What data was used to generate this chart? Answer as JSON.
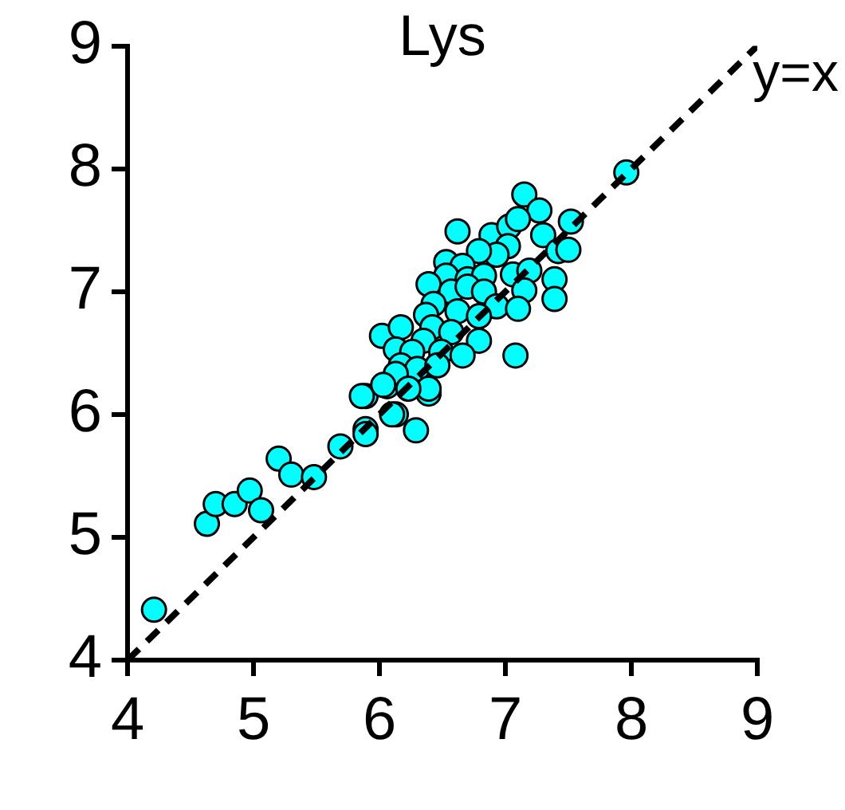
{
  "chart_data": {
    "type": "scatter",
    "title": "Lys",
    "annotations": [
      "y=x"
    ],
    "xlim": [
      4,
      9
    ],
    "ylim": [
      4,
      9
    ],
    "xticks": [
      4,
      5,
      6,
      7,
      8,
      9
    ],
    "yticks": [
      4,
      5,
      6,
      7,
      8,
      9
    ],
    "marker": "circle",
    "series": [
      {
        "type": "line",
        "color": "#000000",
        "line_style": "dashed",
        "marker": "none",
        "x": [
          4,
          9
        ],
        "values": [
          4,
          9
        ]
      },
      {
        "color": "#00ffff",
        "x": [
          4.21,
          4.63,
          4.7,
          4.85,
          4.97,
          5.06,
          5.2,
          5.3,
          5.48,
          5.69,
          5.89,
          5.89,
          6.06,
          6.13,
          6.29,
          5.89,
          6.39,
          6.02,
          7.96,
          7.15,
          7.27,
          6.62,
          6.89,
          7.03,
          7.1,
          7.52,
          7.3,
          7.42,
          7.5,
          7.02,
          6.93,
          6.79,
          6.53,
          6.66,
          6.53,
          6.7,
          6.83,
          7.06,
          7.19,
          7.39,
          7.39,
          6.39,
          6.57,
          6.7,
          6.83,
          7.15,
          6.93,
          7.1,
          6.43,
          6.62,
          6.79,
          6.37,
          6.42,
          6.17,
          6.35,
          6.57,
          6.79,
          6.13,
          6.26,
          6.49,
          6.66,
          7.08,
          6.17,
          6.3,
          6.46,
          6.13,
          6.39,
          6.03,
          5.86,
          6.23,
          6.1
        ],
        "values": [
          4.41,
          5.11,
          5.27,
          5.27,
          5.38,
          5.22,
          5.64,
          5.51,
          5.49,
          5.74,
          5.88,
          6.15,
          6.23,
          6.0,
          5.87,
          5.84,
          6.17,
          6.64,
          7.97,
          7.79,
          7.66,
          7.49,
          7.46,
          7.53,
          7.59,
          7.57,
          7.46,
          7.33,
          7.34,
          7.37,
          7.3,
          7.33,
          7.24,
          7.21,
          7.13,
          7.1,
          7.13,
          7.14,
          7.17,
          7.1,
          6.94,
          7.06,
          7.0,
          7.04,
          7.0,
          7.01,
          6.88,
          6.86,
          6.9,
          6.84,
          6.8,
          6.81,
          6.71,
          6.71,
          6.6,
          6.67,
          6.6,
          6.53,
          6.51,
          6.51,
          6.48,
          6.48,
          6.4,
          6.37,
          6.4,
          6.33,
          6.21,
          6.24,
          6.15,
          6.21,
          6.0
        ]
      }
    ]
  }
}
